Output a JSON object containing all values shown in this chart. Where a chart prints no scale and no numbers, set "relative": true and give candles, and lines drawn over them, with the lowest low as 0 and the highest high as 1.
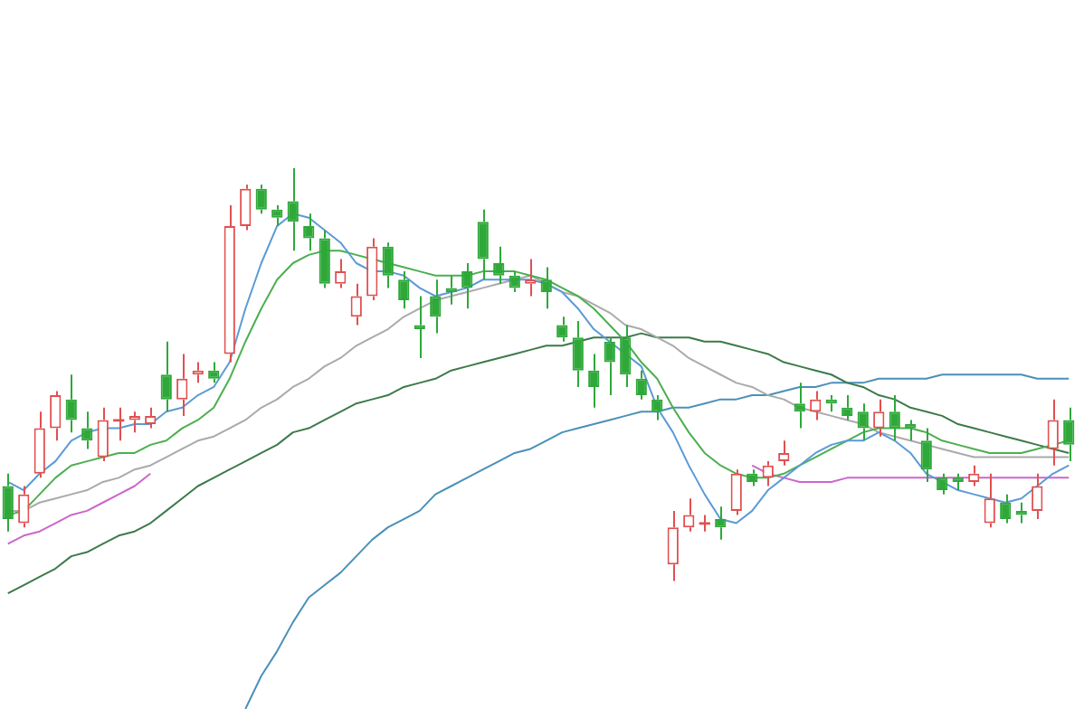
{
  "chart_data": {
    "type": "candlestick",
    "relative": true,
    "categories": [
      null,
      null,
      null,
      null,
      null,
      null,
      null,
      null,
      null,
      null,
      null,
      null,
      null,
      null,
      null,
      null,
      null,
      null,
      null,
      null,
      null,
      null,
      null,
      null,
      null,
      null,
      null,
      null,
      null,
      null,
      null,
      null,
      null,
      null,
      null,
      null,
      null,
      null,
      null,
      null,
      null,
      null,
      null,
      null,
      null,
      null,
      null,
      null,
      null,
      null,
      null,
      null,
      null,
      null,
      null,
      null,
      null,
      null,
      null,
      null,
      null,
      null,
      null,
      null,
      null,
      null,
      null,
      null
    ],
    "ohlc": [
      [
        0.23,
        0.26,
        0.12,
        0.15
      ],
      [
        0.14,
        0.23,
        0.13,
        0.21
      ],
      [
        0.26,
        0.41,
        0.25,
        0.37
      ],
      [
        0.37,
        0.46,
        0.34,
        0.45
      ],
      [
        0.44,
        0.5,
        0.36,
        0.39
      ],
      [
        0.37,
        0.41,
        0.32,
        0.34
      ],
      [
        0.3,
        0.42,
        0.29,
        0.39
      ],
      [
        0.39,
        0.42,
        0.34,
        0.39
      ],
      [
        0.39,
        0.41,
        0.36,
        0.4
      ],
      [
        0.38,
        0.42,
        0.37,
        0.4
      ],
      [
        0.5,
        0.58,
        0.41,
        0.44
      ],
      [
        0.44,
        0.55,
        0.4,
        0.49
      ],
      [
        0.5,
        0.53,
        0.48,
        0.51
      ],
      [
        0.51,
        0.53,
        0.48,
        0.49
      ],
      [
        0.55,
        0.91,
        0.53,
        0.86
      ],
      [
        0.86,
        0.96,
        0.85,
        0.95
      ],
      [
        0.95,
        0.96,
        0.89,
        0.9
      ],
      [
        0.9,
        0.91,
        0.86,
        0.88
      ],
      [
        0.92,
        1,
        0.8,
        0.87
      ],
      [
        0.86,
        0.89,
        0.8,
        0.83
      ],
      [
        0.83,
        0.85,
        0.71,
        0.72
      ],
      [
        0.72,
        0.78,
        0.71,
        0.75
      ],
      [
        0.64,
        0.72,
        0.62,
        0.69
      ],
      [
        0.69,
        0.83,
        0.68,
        0.81
      ],
      [
        0.81,
        0.82,
        0.71,
        0.74
      ],
      [
        0.73,
        0.75,
        0.66,
        0.68
      ],
      [
        0.62,
        0.69,
        0.54,
        0.61
      ],
      [
        0.69,
        0.73,
        0.6,
        0.64
      ],
      [
        0.71,
        0.74,
        0.67,
        0.7
      ],
      [
        0.75,
        0.77,
        0.66,
        0.71
      ],
      [
        0.87,
        0.9,
        0.73,
        0.78
      ],
      [
        0.77,
        0.81,
        0.72,
        0.74
      ],
      [
        0.74,
        0.75,
        0.7,
        0.71
      ],
      [
        0.72,
        0.78,
        0.69,
        0.73
      ],
      [
        0.73,
        0.76,
        0.66,
        0.7
      ],
      [
        0.62,
        0.64,
        0.58,
        0.59
      ],
      [
        0.59,
        0.63,
        0.47,
        0.51
      ],
      [
        0.51,
        0.55,
        0.42,
        0.47
      ],
      [
        0.58,
        0.59,
        0.45,
        0.53
      ],
      [
        0.59,
        0.62,
        0.47,
        0.5
      ],
      [
        0.49,
        0.51,
        0.44,
        0.45
      ],
      [
        0.44,
        0.45,
        0.39,
        0.41
      ],
      [
        0.04,
        0.17,
        0,
        0.13
      ],
      [
        0.13,
        0.2,
        0.12,
        0.16
      ],
      [
        0.14,
        0.16,
        0.12,
        0.14
      ],
      [
        0.15,
        0.18,
        0.1,
        0.13
      ],
      [
        0.17,
        0.27,
        0.16,
        0.26
      ],
      [
        0.26,
        0.27,
        0.23,
        0.24
      ],
      [
        0.25,
        0.29,
        0.23,
        0.28
      ],
      [
        0.29,
        0.34,
        0.28,
        0.31
      ],
      [
        0.43,
        0.48,
        0.37,
        0.41
      ],
      [
        0.41,
        0.46,
        0.39,
        0.44
      ],
      [
        0.44,
        0.45,
        0.41,
        0.43
      ],
      [
        0.42,
        0.45,
        0.39,
        0.4
      ],
      [
        0.41,
        0.43,
        0.34,
        0.37
      ],
      [
        0.37,
        0.44,
        0.35,
        0.41
      ],
      [
        0.41,
        0.45,
        0.34,
        0.37
      ],
      [
        0.38,
        0.39,
        0.34,
        0.37
      ],
      [
        0.34,
        0.37,
        0.24,
        0.27
      ],
      [
        0.25,
        0.26,
        0.21,
        0.22
      ],
      [
        0.25,
        0.26,
        0.22,
        0.24
      ],
      [
        0.24,
        0.28,
        0.23,
        0.26
      ],
      [
        0.14,
        0.26,
        0.13,
        0.2
      ],
      [
        0.19,
        0.21,
        0.14,
        0.15
      ],
      [
        0.17,
        0.19,
        0.14,
        0.16
      ],
      [
        0.17,
        0.26,
        0.15,
        0.23
      ],
      [
        0.32,
        0.44,
        0.28,
        0.39
      ],
      [
        0.39,
        0.42,
        0.29,
        0.33
      ]
    ],
    "series": [
      {
        "type": "line",
        "color": "#5b9bd5",
        "values": [
          0.24,
          0.22,
          0.26,
          0.29,
          0.34,
          0.36,
          0.37,
          0.37,
          0.38,
          0.38,
          0.41,
          0.42,
          0.45,
          0.47,
          0.53,
          0.66,
          0.77,
          0.86,
          0.89,
          0.88,
          0.85,
          0.82,
          0.77,
          0.75,
          0.75,
          0.74,
          0.71,
          0.69,
          0.7,
          0.71,
          0.73,
          0.73,
          0.73,
          0.73,
          0.72,
          0.7,
          0.66,
          0.61,
          0.58,
          0.55,
          0.52,
          0.42,
          0.36,
          0.28,
          0.21,
          0.15,
          0.14,
          0.17,
          0.22,
          0.25,
          0.28,
          0.31,
          0.33,
          0.34,
          0.34,
          0.36,
          0.34,
          0.31,
          0.26,
          0.24,
          0.22,
          0.21,
          0.2,
          0.19,
          0.2,
          0.23,
          0.26,
          0.28
        ]
      },
      {
        "type": "line",
        "color": "#4caf50",
        "values": [
          0.16,
          0.17,
          0.21,
          0.25,
          0.28,
          0.29,
          0.3,
          0.31,
          0.31,
          0.33,
          0.34,
          0.37,
          0.39,
          0.42,
          0.49,
          0.58,
          0.66,
          0.73,
          0.77,
          0.79,
          0.8,
          0.8,
          0.79,
          0.78,
          0.77,
          0.76,
          0.75,
          0.74,
          0.74,
          0.74,
          0.75,
          0.75,
          0.75,
          0.74,
          0.73,
          0.71,
          0.69,
          0.66,
          0.62,
          0.58,
          0.53,
          0.49,
          0.42,
          0.36,
          0.31,
          0.28,
          0.26,
          0.25,
          0.25,
          0.26,
          0.28,
          0.3,
          0.32,
          0.34,
          0.36,
          0.37,
          0.37,
          0.37,
          0.36,
          0.34,
          0.33,
          0.32,
          0.31,
          0.31,
          0.31,
          0.32,
          0.33,
          0.34
        ]
      },
      {
        "type": "line",
        "color": "#aaaaaa",
        "values": [
          0.17,
          0.17,
          0.19,
          0.2,
          0.21,
          0.22,
          0.24,
          0.25,
          0.27,
          0.28,
          0.3,
          0.32,
          0.34,
          0.35,
          0.37,
          0.39,
          0.42,
          0.44,
          0.47,
          0.49,
          0.52,
          0.54,
          0.57,
          0.59,
          0.61,
          0.64,
          0.66,
          0.68,
          0.69,
          0.7,
          0.71,
          0.72,
          0.73,
          0.74,
          0.72,
          0.7,
          0.69,
          0.67,
          0.65,
          0.62,
          0.61,
          0.59,
          0.57,
          0.54,
          0.52,
          0.5,
          0.48,
          0.47,
          0.45,
          0.44,
          0.42,
          0.41,
          0.4,
          0.39,
          0.38,
          0.36,
          0.35,
          0.34,
          0.33,
          0.32,
          0.31,
          0.3,
          0.3,
          0.3,
          0.3,
          0.3,
          0.3,
          0.3
        ]
      },
      {
        "type": "line",
        "color": "#cc66cc",
        "values": [
          0.09,
          0.11,
          0.12,
          0.14,
          0.16,
          0.17,
          0.19,
          0.21,
          0.23,
          0.26,
          null,
          null,
          null,
          null,
          null,
          null,
          null,
          null,
          null,
          null,
          null,
          null,
          null,
          null,
          null,
          null,
          null,
          null,
          null,
          null,
          null,
          null,
          null,
          null,
          null,
          null,
          null,
          null,
          null,
          null,
          null,
          null,
          null,
          null,
          null,
          null,
          null,
          0.28,
          0.26,
          0.25,
          0.24,
          0.24,
          0.24,
          0.25,
          0.25,
          0.25,
          0.25,
          0.25,
          0.25,
          0.25,
          0.25,
          0.25,
          0.25,
          0.25,
          0.25,
          0.25,
          0.25,
          0.25
        ]
      },
      {
        "type": "line",
        "color": "#3d7a4a",
        "values": [
          -0.03,
          -0.01,
          0.01,
          0.03,
          0.06,
          0.07,
          0.09,
          0.11,
          0.12,
          0.14,
          0.17,
          0.2,
          0.23,
          0.25,
          0.27,
          0.29,
          0.31,
          0.33,
          0.36,
          0.37,
          0.39,
          0.41,
          0.43,
          0.44,
          0.45,
          0.47,
          0.48,
          0.49,
          0.51,
          0.52,
          0.53,
          0.54,
          0.55,
          0.56,
          0.57,
          0.57,
          0.58,
          0.59,
          0.59,
          0.59,
          0.6,
          0.59,
          0.59,
          0.59,
          0.58,
          0.58,
          0.57,
          0.56,
          0.55,
          0.53,
          0.52,
          0.51,
          0.5,
          0.48,
          0.47,
          0.45,
          0.44,
          0.42,
          0.41,
          0.4,
          0.38,
          0.37,
          0.36,
          0.35,
          0.34,
          0.33,
          0.32,
          0.31
        ]
      },
      {
        "type": "line",
        "color": "#4a90b8",
        "values": [
          null,
          null,
          null,
          null,
          null,
          null,
          null,
          null,
          null,
          null,
          null,
          null,
          null,
          null,
          null,
          -0.31,
          -0.23,
          -0.17,
          -0.1,
          -0.04,
          -0.01,
          0.02,
          0.06,
          0.1,
          0.13,
          0.15,
          0.17,
          0.21,
          0.23,
          0.25,
          0.27,
          0.29,
          0.31,
          0.32,
          0.34,
          0.36,
          0.37,
          0.38,
          0.39,
          0.4,
          0.41,
          0.41,
          0.42,
          0.42,
          0.43,
          0.44,
          0.44,
          0.45,
          0.45,
          0.46,
          0.47,
          0.47,
          0.48,
          0.48,
          0.48,
          0.49,
          0.49,
          0.49,
          0.49,
          0.5,
          0.5,
          0.5,
          0.5,
          0.5,
          0.5,
          0.49,
          0.49,
          0.49
        ]
      }
    ]
  }
}
